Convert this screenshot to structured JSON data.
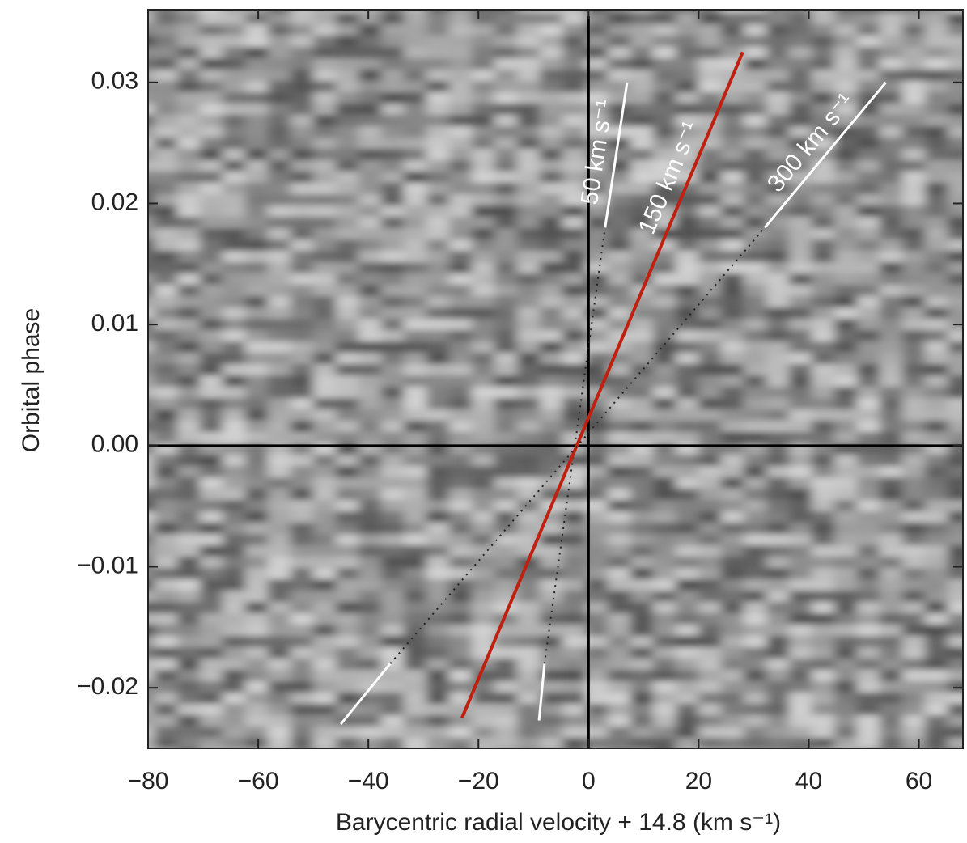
{
  "chart_data": {
    "type": "line",
    "xlabel": "Barycentric radial velocity + 14.8 (km s⁻¹)",
    "ylabel": "Orbital phase",
    "xlim": [
      -80,
      68
    ],
    "ylim": [
      -0.025,
      0.036
    ],
    "xticks": [
      {
        "value": -80,
        "label": "−80"
      },
      {
        "value": -60,
        "label": "−60"
      },
      {
        "value": -40,
        "label": "−40"
      },
      {
        "value": -20,
        "label": "−20"
      },
      0,
      20,
      40,
      60
    ],
    "yticks": [
      {
        "value": -0.02,
        "label": "−0.02"
      },
      {
        "value": -0.01,
        "label": "−0.01"
      },
      {
        "value": 0,
        "label": "0.00"
      },
      {
        "value": 0.01,
        "label": "0.01"
      },
      {
        "value": 0.02,
        "label": "0.02"
      },
      {
        "value": 0.03,
        "label": "0.03"
      }
    ],
    "guides": [
      {
        "label": "50 km s⁻¹",
        "color": "#ffffff",
        "x": [
          -9,
          -8,
          3,
          7
        ],
        "y": [
          -0.0227,
          -0.018,
          0.018,
          0.03
        ]
      },
      {
        "label": "150 km s⁻¹",
        "color": "#c0200f",
        "x": [
          -23,
          28
        ],
        "y": [
          -0.0225,
          0.0325
        ]
      },
      {
        "label": "300 km s⁻¹",
        "color": "#ffffff",
        "x": [
          -45,
          -36,
          32,
          54
        ],
        "y": [
          -0.023,
          -0.018,
          0.018,
          0.03
        ]
      }
    ]
  }
}
